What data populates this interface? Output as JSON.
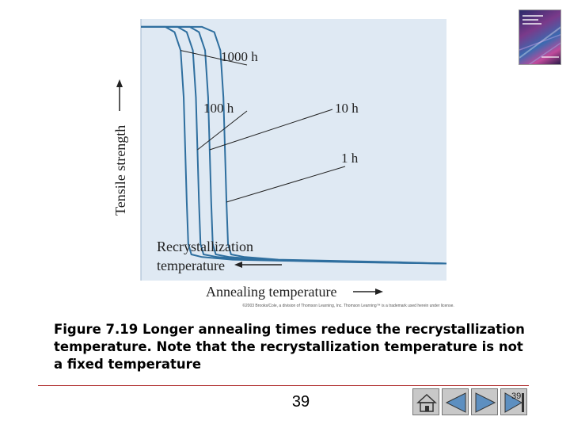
{
  "chart_data": {
    "type": "line",
    "xlabel": "Annealing temperature",
    "ylabel": "Tensile strength",
    "ylim": [
      0,
      1
    ],
    "xlim": [
      0,
      1
    ],
    "annotation": [
      "Recrystallization",
      "temperature"
    ],
    "series": [
      {
        "name": "1000 h",
        "x": [
          0.0,
          0.08,
          0.11,
          0.13,
          0.14,
          0.145,
          0.15,
          0.155,
          0.165,
          0.2,
          0.3,
          0.5,
          0.7,
          1.0
        ],
        "y": [
          0.97,
          0.97,
          0.95,
          0.88,
          0.7,
          0.5,
          0.3,
          0.14,
          0.1,
          0.09,
          0.08,
          0.075,
          0.07,
          0.065
        ]
      },
      {
        "name": "100 h",
        "x": [
          0.0,
          0.12,
          0.15,
          0.17,
          0.18,
          0.185,
          0.19,
          0.195,
          0.205,
          0.25,
          0.35,
          0.55,
          0.75,
          1.0
        ],
        "y": [
          0.97,
          0.97,
          0.95,
          0.88,
          0.7,
          0.5,
          0.3,
          0.14,
          0.1,
          0.09,
          0.08,
          0.075,
          0.07,
          0.065
        ]
      },
      {
        "name": "10 h",
        "x": [
          0.0,
          0.16,
          0.19,
          0.21,
          0.22,
          0.225,
          0.23,
          0.235,
          0.245,
          0.29,
          0.4,
          0.6,
          0.8,
          1.0
        ],
        "y": [
          0.97,
          0.97,
          0.95,
          0.88,
          0.7,
          0.5,
          0.3,
          0.14,
          0.1,
          0.09,
          0.08,
          0.075,
          0.07,
          0.065
        ]
      },
      {
        "name": "1 h",
        "x": [
          0.0,
          0.2,
          0.24,
          0.26,
          0.27,
          0.275,
          0.28,
          0.285,
          0.295,
          0.34,
          0.45,
          0.65,
          0.85,
          1.0
        ],
        "y": [
          0.97,
          0.97,
          0.95,
          0.88,
          0.7,
          0.5,
          0.3,
          0.14,
          0.1,
          0.09,
          0.08,
          0.075,
          0.07,
          0.065
        ]
      }
    ],
    "grid": false,
    "line_color": "#2f6f9f",
    "plot_background": "#dfe9f3"
  },
  "copyright": "©2003 Brooks/Cole, a division of Thomson Learning, Inc. Thomson Learning™ is a trademark used herein under license.",
  "caption": "Figure 7.19 Longer annealing times reduce the recrystallization temperature. Note that the recrystallization temperature is not a fixed temperature",
  "footer": {
    "page_number": "39",
    "slide_count": "39"
  },
  "icons": {
    "home": "home-icon",
    "prev": "triangle-left-icon",
    "next": "triangle-right-icon",
    "end": "end-icon"
  }
}
